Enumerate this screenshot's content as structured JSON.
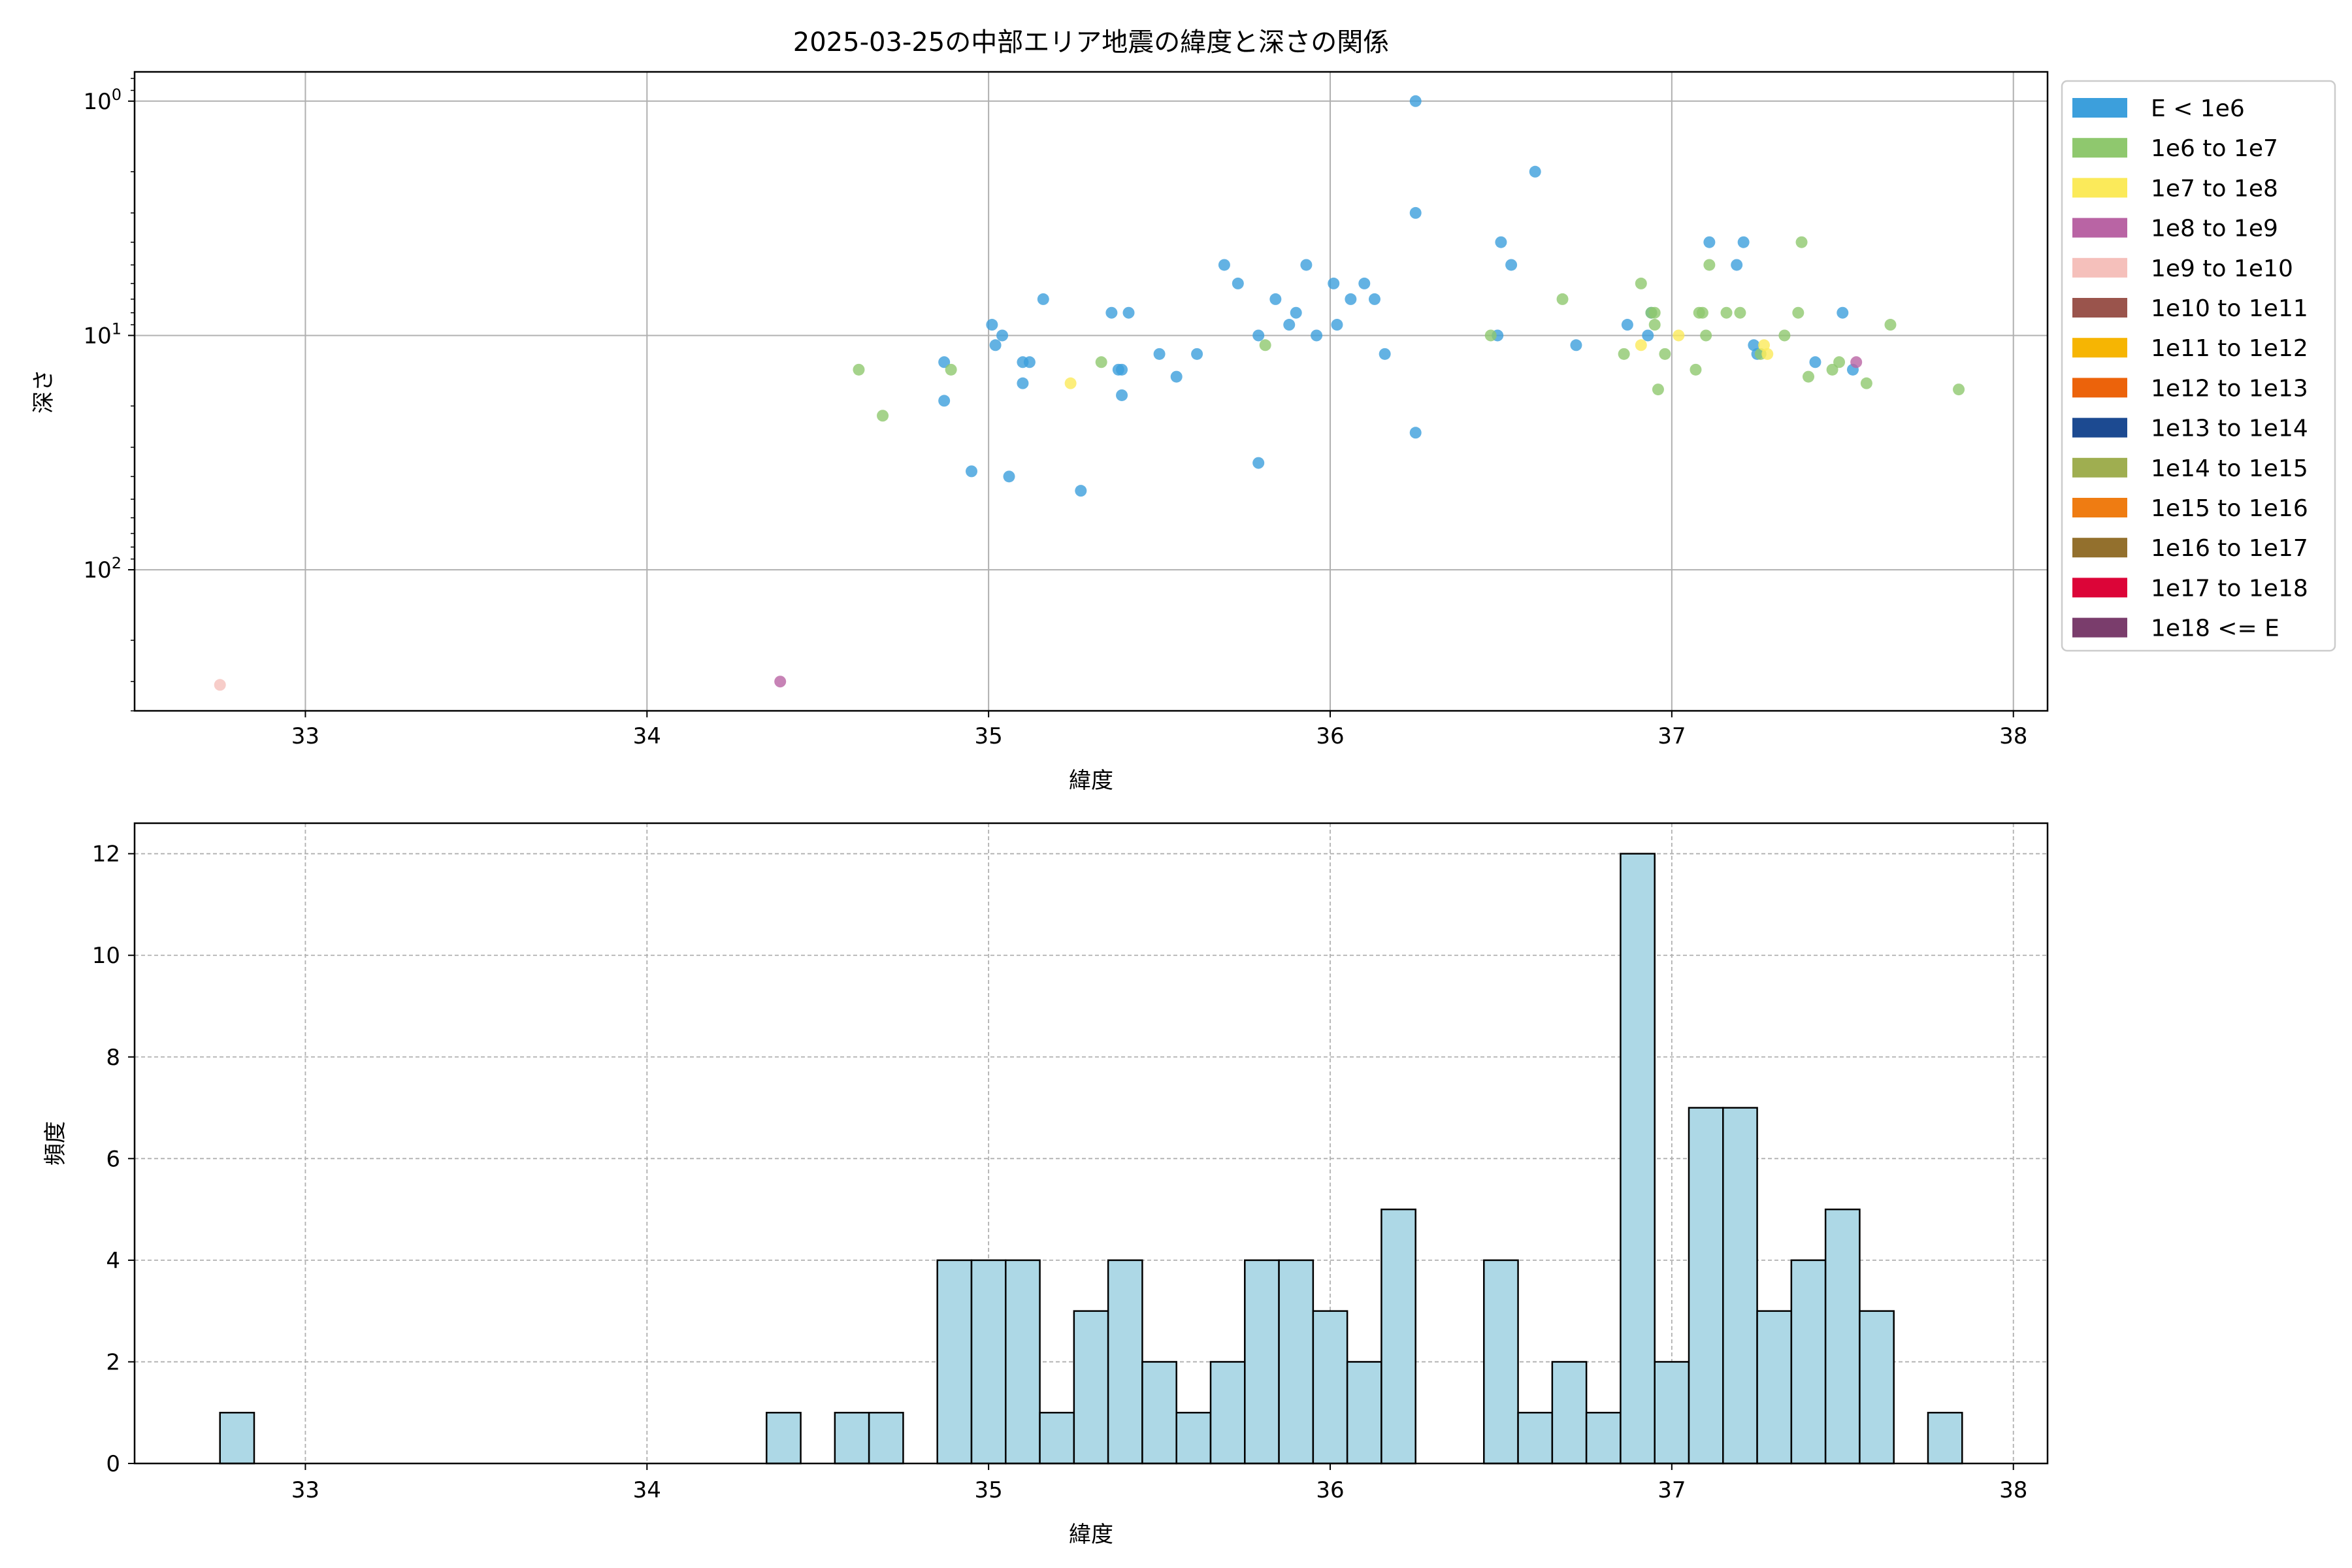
{
  "figure": {
    "title": "2025-03-25の中部エリア地震の緯度と深さの関係"
  },
  "legend": {
    "entries": [
      {
        "label": "E < 1e6",
        "color": "#3c9fdc"
      },
      {
        "label": "1e6 to 1e7",
        "color": "#8fc86e"
      },
      {
        "label": "1e7 to 1e8",
        "color": "#fbea5a"
      },
      {
        "label": "1e8 to 1e9",
        "color": "#b964a4"
      },
      {
        "label": "1e9 to 1e10",
        "color": "#f5c0bb"
      },
      {
        "label": "1e10 to 1e11",
        "color": "#9a544c"
      },
      {
        "label": "1e11 to 1e12",
        "color": "#f6b503"
      },
      {
        "label": "1e12 to 1e13",
        "color": "#ec630b"
      },
      {
        "label": "1e13 to 1e14",
        "color": "#1c4a91"
      },
      {
        "label": "1e14 to 1e15",
        "color": "#9fae50"
      },
      {
        "label": "1e15 to 1e16",
        "color": "#ef7c12"
      },
      {
        "label": "1e16 to 1e17",
        "color": "#93702d"
      },
      {
        "label": "1e17 to 1e18",
        "color": "#dc0538"
      },
      {
        "label": "1e18 <= E",
        "color": "#7a3d6c"
      }
    ]
  },
  "chart_data": [
    {
      "type": "scatter",
      "xlabel": "緯度",
      "ylabel": "深さ",
      "xlim": [
        32.5,
        38.1
      ],
      "ylim": [
        400,
        0.75
      ],
      "yscale": "log",
      "y_inverted": true,
      "xticks": [
        "33",
        "34",
        "35",
        "36",
        "37",
        "38"
      ],
      "yticks": [
        {
          "value": 1,
          "base": "10",
          "exp": "0"
        },
        {
          "value": 10,
          "base": "10",
          "exp": "1"
        },
        {
          "value": 100,
          "base": "10",
          "exp": "2"
        }
      ],
      "grid": true,
      "legend_position": "outside right",
      "series": [
        {
          "color": "#3c9fdc",
          "points": [
            [
              34.87,
              13
            ],
            [
              34.87,
              19
            ],
            [
              34.95,
              38
            ],
            [
              35.01,
              9
            ],
            [
              35.02,
              11
            ],
            [
              35.04,
              10
            ],
            [
              35.06,
              40
            ],
            [
              35.1,
              16
            ],
            [
              35.1,
              13
            ],
            [
              35.12,
              13
            ],
            [
              35.16,
              7
            ],
            [
              35.27,
              46
            ],
            [
              35.36,
              8
            ],
            [
              35.38,
              14
            ],
            [
              35.39,
              14
            ],
            [
              35.39,
              18
            ],
            [
              35.41,
              8
            ],
            [
              35.5,
              12
            ],
            [
              35.55,
              15
            ],
            [
              35.61,
              12
            ],
            [
              35.69,
              5
            ],
            [
              35.73,
              6
            ],
            [
              35.79,
              35
            ],
            [
              35.79,
              10
            ],
            [
              35.84,
              7
            ],
            [
              35.88,
              9
            ],
            [
              35.9,
              8
            ],
            [
              35.93,
              5
            ],
            [
              35.96,
              10
            ],
            [
              36.01,
              6
            ],
            [
              36.02,
              9
            ],
            [
              36.06,
              7
            ],
            [
              36.1,
              6
            ],
            [
              36.13,
              7
            ],
            [
              36.16,
              12
            ],
            [
              36.25,
              1
            ],
            [
              36.25,
              3
            ],
            [
              36.25,
              26
            ],
            [
              36.49,
              10
            ],
            [
              36.5,
              4
            ],
            [
              36.53,
              5
            ],
            [
              36.6,
              2
            ],
            [
              36.72,
              11
            ],
            [
              36.87,
              9
            ],
            [
              36.93,
              10
            ],
            [
              36.94,
              8
            ],
            [
              37.11,
              4
            ],
            [
              37.19,
              5
            ],
            [
              37.21,
              4
            ],
            [
              37.24,
              11
            ],
            [
              37.25,
              12
            ],
            [
              37.42,
              13
            ],
            [
              37.5,
              8
            ],
            [
              37.53,
              14
            ]
          ]
        },
        {
          "color": "#8fc86e",
          "points": [
            [
              34.62,
              14
            ],
            [
              34.69,
              22
            ],
            [
              34.89,
              14
            ],
            [
              35.33,
              13
            ],
            [
              35.81,
              11
            ],
            [
              36.47,
              10
            ],
            [
              36.68,
              7
            ],
            [
              36.86,
              12
            ],
            [
              36.91,
              6
            ],
            [
              36.94,
              8
            ],
            [
              36.95,
              8
            ],
            [
              36.95,
              9
            ],
            [
              36.96,
              17
            ],
            [
              36.98,
              12
            ],
            [
              37.07,
              14
            ],
            [
              37.08,
              8
            ],
            [
              37.09,
              8
            ],
            [
              37.1,
              10
            ],
            [
              37.11,
              5
            ],
            [
              37.16,
              8
            ],
            [
              37.2,
              8
            ],
            [
              37.26,
              12
            ],
            [
              37.33,
              10
            ],
            [
              37.37,
              8
            ],
            [
              37.38,
              4
            ],
            [
              37.4,
              15
            ],
            [
              37.47,
              14
            ],
            [
              37.49,
              13
            ],
            [
              37.57,
              16
            ],
            [
              37.64,
              9
            ],
            [
              37.84,
              17
            ]
          ]
        },
        {
          "color": "#fbea5a",
          "points": [
            [
              35.24,
              16
            ],
            [
              36.91,
              11
            ],
            [
              37.02,
              10
            ],
            [
              37.27,
              11
            ],
            [
              37.28,
              12
            ]
          ]
        },
        {
          "color": "#b964a4",
          "points": [
            [
              34.39,
              300
            ],
            [
              37.54,
              13
            ]
          ]
        },
        {
          "color": "#f5c0bb",
          "points": [
            [
              32.75,
              310
            ]
          ]
        }
      ]
    },
    {
      "type": "bar",
      "xlabel": "緯度",
      "ylabel": "頻度",
      "xlim": [
        32.5,
        38.1
      ],
      "ylim": [
        0,
        12.6
      ],
      "xticks": [
        "33",
        "34",
        "35",
        "36",
        "37",
        "38"
      ],
      "yticks": [
        "0",
        "2",
        "4",
        "6",
        "8",
        "10",
        "12"
      ],
      "grid": true,
      "bar_color": "#add8e6",
      "bin_width": 0.1,
      "bins": [
        {
          "start": 32.75,
          "count": 1
        },
        {
          "start": 34.35,
          "count": 1
        },
        {
          "start": 34.55,
          "count": 1
        },
        {
          "start": 34.65,
          "count": 1
        },
        {
          "start": 34.85,
          "count": 4
        },
        {
          "start": 34.95,
          "count": 4
        },
        {
          "start": 35.05,
          "count": 4
        },
        {
          "start": 35.15,
          "count": 1
        },
        {
          "start": 35.25,
          "count": 3
        },
        {
          "start": 35.35,
          "count": 4
        },
        {
          "start": 35.45,
          "count": 2
        },
        {
          "start": 35.55,
          "count": 1
        },
        {
          "start": 35.65,
          "count": 2
        },
        {
          "start": 35.75,
          "count": 4
        },
        {
          "start": 35.85,
          "count": 4
        },
        {
          "start": 35.95,
          "count": 3
        },
        {
          "start": 36.05,
          "count": 2
        },
        {
          "start": 36.15,
          "count": 5
        },
        {
          "start": 36.45,
          "count": 4
        },
        {
          "start": 36.55,
          "count": 1
        },
        {
          "start": 36.65,
          "count": 2
        },
        {
          "start": 36.75,
          "count": 1
        },
        {
          "start": 36.85,
          "count": 12
        },
        {
          "start": 36.95,
          "count": 2
        },
        {
          "start": 37.05,
          "count": 7
        },
        {
          "start": 37.15,
          "count": 7
        },
        {
          "start": 37.25,
          "count": 3
        },
        {
          "start": 37.35,
          "count": 4
        },
        {
          "start": 37.45,
          "count": 5
        },
        {
          "start": 37.55,
          "count": 3
        },
        {
          "start": 37.75,
          "count": 1
        }
      ]
    }
  ]
}
